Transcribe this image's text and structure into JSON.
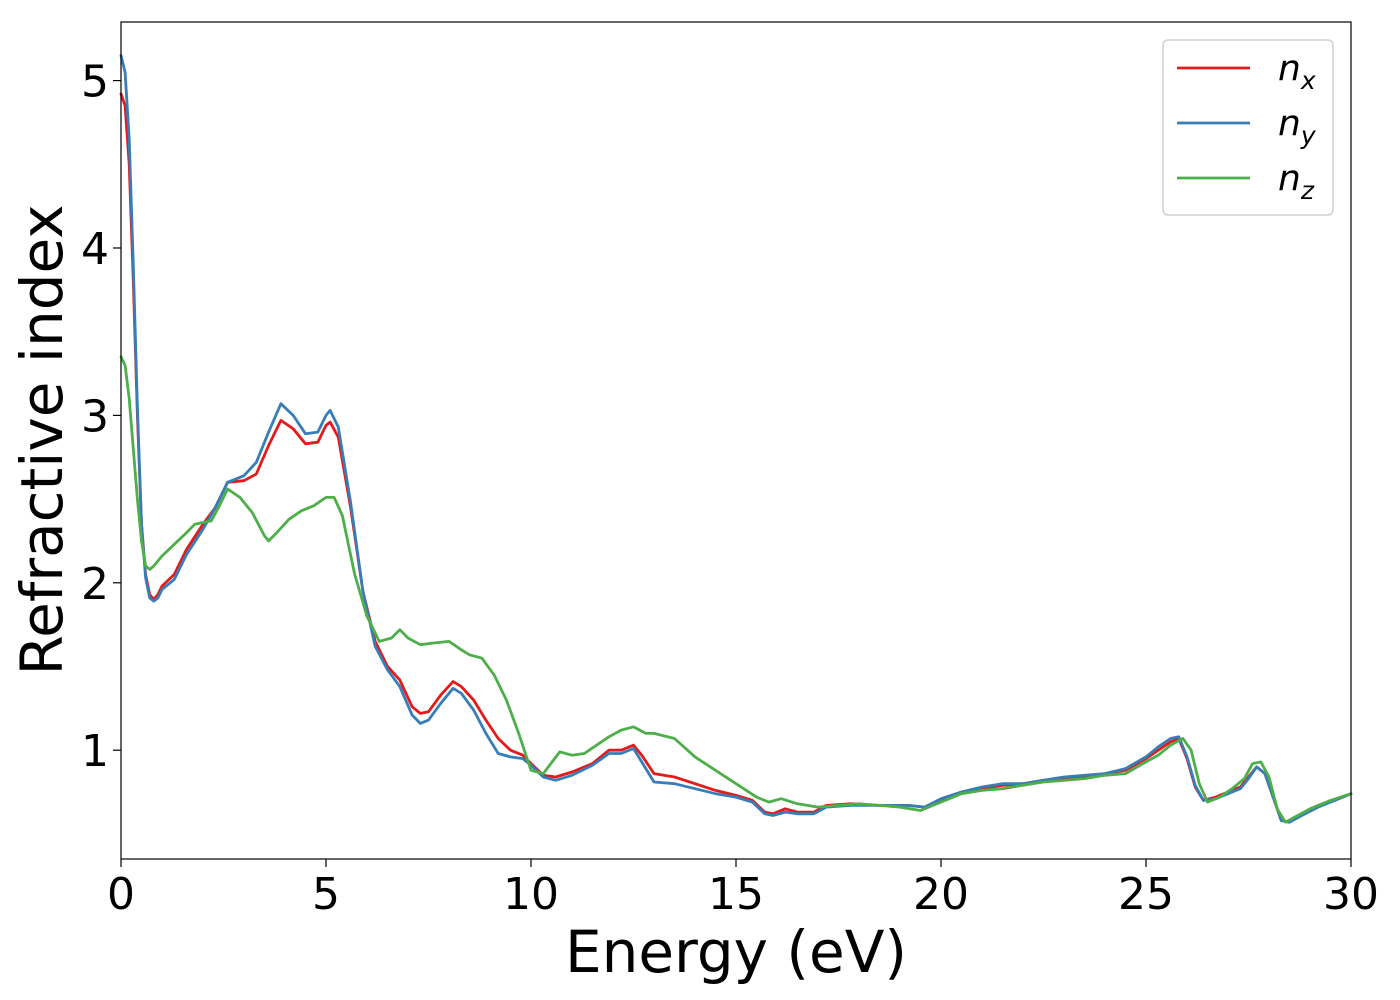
{
  "chart_data": {
    "type": "line",
    "title": "",
    "xlabel": "Energy (eV)",
    "ylabel": "Refractive index",
    "xlim": [
      0,
      30
    ],
    "ylim": [
      0.35,
      5.35
    ],
    "xticks": [
      0,
      5,
      10,
      15,
      20,
      25,
      30
    ],
    "yticks": [
      1,
      2,
      3,
      4,
      5
    ],
    "grid": false,
    "legend_position": "top-right",
    "series": [
      {
        "name": "n_x",
        "label_base": "n",
        "label_sub": "x",
        "color": "#e41a1c",
        "points": [
          [
            0,
            4.92
          ],
          [
            0.1,
            4.85
          ],
          [
            0.2,
            4.5
          ],
          [
            0.3,
            3.8
          ],
          [
            0.4,
            3.0
          ],
          [
            0.5,
            2.35
          ],
          [
            0.6,
            2.05
          ],
          [
            0.7,
            1.93
          ],
          [
            0.8,
            1.9
          ],
          [
            0.9,
            1.93
          ],
          [
            1.0,
            1.98
          ],
          [
            1.3,
            2.05
          ],
          [
            1.6,
            2.2
          ],
          [
            2.0,
            2.35
          ],
          [
            2.3,
            2.45
          ],
          [
            2.6,
            2.6
          ],
          [
            3.0,
            2.61
          ],
          [
            3.3,
            2.65
          ],
          [
            3.6,
            2.82
          ],
          [
            3.9,
            2.97
          ],
          [
            4.2,
            2.92
          ],
          [
            4.5,
            2.83
          ],
          [
            4.8,
            2.84
          ],
          [
            5.0,
            2.94
          ],
          [
            5.1,
            2.96
          ],
          [
            5.3,
            2.87
          ],
          [
            5.6,
            2.45
          ],
          [
            5.9,
            1.95
          ],
          [
            6.2,
            1.65
          ],
          [
            6.5,
            1.5
          ],
          [
            6.8,
            1.42
          ],
          [
            7.1,
            1.26
          ],
          [
            7.3,
            1.22
          ],
          [
            7.5,
            1.23
          ],
          [
            7.8,
            1.33
          ],
          [
            8.1,
            1.41
          ],
          [
            8.3,
            1.38
          ],
          [
            8.6,
            1.3
          ],
          [
            8.9,
            1.18
          ],
          [
            9.2,
            1.07
          ],
          [
            9.5,
            1.0
          ],
          [
            9.8,
            0.97
          ],
          [
            10.0,
            0.92
          ],
          [
            10.3,
            0.85
          ],
          [
            10.6,
            0.84
          ],
          [
            11.0,
            0.87
          ],
          [
            11.5,
            0.92
          ],
          [
            11.9,
            1.0
          ],
          [
            12.2,
            1.0
          ],
          [
            12.5,
            1.03
          ],
          [
            12.7,
            0.97
          ],
          [
            13.0,
            0.86
          ],
          [
            13.5,
            0.84
          ],
          [
            14.0,
            0.8
          ],
          [
            14.5,
            0.76
          ],
          [
            15.0,
            0.73
          ],
          [
            15.4,
            0.7
          ],
          [
            15.7,
            0.63
          ],
          [
            15.9,
            0.62
          ],
          [
            16.2,
            0.65
          ],
          [
            16.5,
            0.63
          ],
          [
            16.9,
            0.63
          ],
          [
            17.2,
            0.67
          ],
          [
            17.8,
            0.68
          ],
          [
            18.5,
            0.67
          ],
          [
            19.2,
            0.67
          ],
          [
            19.6,
            0.66
          ],
          [
            20.0,
            0.7
          ],
          [
            20.5,
            0.75
          ],
          [
            21.0,
            0.77
          ],
          [
            21.5,
            0.79
          ],
          [
            22.0,
            0.8
          ],
          [
            22.5,
            0.82
          ],
          [
            23.0,
            0.83
          ],
          [
            23.5,
            0.84
          ],
          [
            24.0,
            0.86
          ],
          [
            24.5,
            0.88
          ],
          [
            25.0,
            0.95
          ],
          [
            25.3,
            1.0
          ],
          [
            25.6,
            1.05
          ],
          [
            25.8,
            1.07
          ],
          [
            26.0,
            0.95
          ],
          [
            26.2,
            0.78
          ],
          [
            26.4,
            0.7
          ],
          [
            26.7,
            0.72
          ],
          [
            27.0,
            0.75
          ],
          [
            27.3,
            0.78
          ],
          [
            27.5,
            0.84
          ],
          [
            27.7,
            0.9
          ],
          [
            27.9,
            0.86
          ],
          [
            28.1,
            0.72
          ],
          [
            28.3,
            0.58
          ],
          [
            28.5,
            0.57
          ],
          [
            28.8,
            0.62
          ],
          [
            29.2,
            0.67
          ],
          [
            29.6,
            0.7
          ],
          [
            30.0,
            0.74
          ]
        ]
      },
      {
        "name": "n_y",
        "label_base": "n",
        "label_sub": "y",
        "color": "#377eb8",
        "points": [
          [
            0,
            5.15
          ],
          [
            0.1,
            5.05
          ],
          [
            0.2,
            4.65
          ],
          [
            0.3,
            3.9
          ],
          [
            0.4,
            3.05
          ],
          [
            0.5,
            2.35
          ],
          [
            0.6,
            2.03
          ],
          [
            0.7,
            1.91
          ],
          [
            0.8,
            1.89
          ],
          [
            0.9,
            1.91
          ],
          [
            1.0,
            1.96
          ],
          [
            1.3,
            2.02
          ],
          [
            1.6,
            2.17
          ],
          [
            2.0,
            2.32
          ],
          [
            2.3,
            2.45
          ],
          [
            2.6,
            2.6
          ],
          [
            3.0,
            2.64
          ],
          [
            3.3,
            2.72
          ],
          [
            3.6,
            2.9
          ],
          [
            3.9,
            3.07
          ],
          [
            4.2,
            3.0
          ],
          [
            4.5,
            2.89
          ],
          [
            4.8,
            2.9
          ],
          [
            5.0,
            3.0
          ],
          [
            5.1,
            3.03
          ],
          [
            5.3,
            2.93
          ],
          [
            5.6,
            2.48
          ],
          [
            5.9,
            1.95
          ],
          [
            6.2,
            1.62
          ],
          [
            6.5,
            1.48
          ],
          [
            6.8,
            1.38
          ],
          [
            7.1,
            1.21
          ],
          [
            7.3,
            1.16
          ],
          [
            7.5,
            1.18
          ],
          [
            7.8,
            1.28
          ],
          [
            8.1,
            1.37
          ],
          [
            8.3,
            1.34
          ],
          [
            8.6,
            1.24
          ],
          [
            8.9,
            1.1
          ],
          [
            9.2,
            0.98
          ],
          [
            9.5,
            0.96
          ],
          [
            9.8,
            0.95
          ],
          [
            10.0,
            0.91
          ],
          [
            10.3,
            0.84
          ],
          [
            10.6,
            0.82
          ],
          [
            11.0,
            0.85
          ],
          [
            11.5,
            0.91
          ],
          [
            11.9,
            0.98
          ],
          [
            12.2,
            0.98
          ],
          [
            12.5,
            1.01
          ],
          [
            12.7,
            0.93
          ],
          [
            13.0,
            0.81
          ],
          [
            13.5,
            0.8
          ],
          [
            14.0,
            0.77
          ],
          [
            14.5,
            0.74
          ],
          [
            15.0,
            0.72
          ],
          [
            15.4,
            0.69
          ],
          [
            15.7,
            0.62
          ],
          [
            15.9,
            0.61
          ],
          [
            16.2,
            0.63
          ],
          [
            16.5,
            0.62
          ],
          [
            16.9,
            0.62
          ],
          [
            17.2,
            0.66
          ],
          [
            17.8,
            0.67
          ],
          [
            18.5,
            0.67
          ],
          [
            19.2,
            0.67
          ],
          [
            19.6,
            0.66
          ],
          [
            20.0,
            0.71
          ],
          [
            20.5,
            0.75
          ],
          [
            21.0,
            0.78
          ],
          [
            21.5,
            0.8
          ],
          [
            22.0,
            0.8
          ],
          [
            22.5,
            0.82
          ],
          [
            23.0,
            0.84
          ],
          [
            23.5,
            0.85
          ],
          [
            24.0,
            0.86
          ],
          [
            24.5,
            0.89
          ],
          [
            25.0,
            0.96
          ],
          [
            25.3,
            1.02
          ],
          [
            25.6,
            1.07
          ],
          [
            25.8,
            1.08
          ],
          [
            26.0,
            0.96
          ],
          [
            26.2,
            0.79
          ],
          [
            26.4,
            0.7
          ],
          [
            26.7,
            0.71
          ],
          [
            27.0,
            0.74
          ],
          [
            27.3,
            0.77
          ],
          [
            27.5,
            0.83
          ],
          [
            27.7,
            0.9
          ],
          [
            27.9,
            0.86
          ],
          [
            28.1,
            0.72
          ],
          [
            28.3,
            0.58
          ],
          [
            28.5,
            0.57
          ],
          [
            28.8,
            0.61
          ],
          [
            29.2,
            0.66
          ],
          [
            29.6,
            0.7
          ],
          [
            30.0,
            0.74
          ]
        ]
      },
      {
        "name": "n_z",
        "label_base": "n",
        "label_sub": "z",
        "color": "#4daf4a",
        "points": [
          [
            0,
            3.35
          ],
          [
            0.1,
            3.3
          ],
          [
            0.2,
            3.1
          ],
          [
            0.3,
            2.8
          ],
          [
            0.4,
            2.5
          ],
          [
            0.5,
            2.25
          ],
          [
            0.6,
            2.1
          ],
          [
            0.7,
            2.08
          ],
          [
            0.8,
            2.1
          ],
          [
            1.0,
            2.16
          ],
          [
            1.3,
            2.23
          ],
          [
            1.6,
            2.3
          ],
          [
            1.8,
            2.35
          ],
          [
            2.0,
            2.36
          ],
          [
            2.2,
            2.37
          ],
          [
            2.4,
            2.46
          ],
          [
            2.6,
            2.56
          ],
          [
            2.9,
            2.51
          ],
          [
            3.2,
            2.42
          ],
          [
            3.5,
            2.28
          ],
          [
            3.6,
            2.25
          ],
          [
            3.8,
            2.3
          ],
          [
            4.1,
            2.38
          ],
          [
            4.4,
            2.43
          ],
          [
            4.7,
            2.46
          ],
          [
            5.0,
            2.51
          ],
          [
            5.2,
            2.51
          ],
          [
            5.4,
            2.4
          ],
          [
            5.7,
            2.05
          ],
          [
            6.0,
            1.8
          ],
          [
            6.3,
            1.65
          ],
          [
            6.6,
            1.67
          ],
          [
            6.8,
            1.72
          ],
          [
            7.0,
            1.67
          ],
          [
            7.3,
            1.63
          ],
          [
            7.6,
            1.64
          ],
          [
            8.0,
            1.65
          ],
          [
            8.3,
            1.6
          ],
          [
            8.5,
            1.57
          ],
          [
            8.8,
            1.55
          ],
          [
            9.1,
            1.45
          ],
          [
            9.4,
            1.3
          ],
          [
            9.7,
            1.1
          ],
          [
            10.0,
            0.88
          ],
          [
            10.3,
            0.86
          ],
          [
            10.7,
            0.99
          ],
          [
            11.0,
            0.97
          ],
          [
            11.3,
            0.98
          ],
          [
            11.6,
            1.03
          ],
          [
            11.9,
            1.08
          ],
          [
            12.2,
            1.12
          ],
          [
            12.5,
            1.14
          ],
          [
            12.8,
            1.1
          ],
          [
            13.0,
            1.1
          ],
          [
            13.5,
            1.07
          ],
          [
            14.0,
            0.96
          ],
          [
            14.5,
            0.88
          ],
          [
            15.0,
            0.8
          ],
          [
            15.5,
            0.72
          ],
          [
            15.8,
            0.69
          ],
          [
            16.1,
            0.71
          ],
          [
            16.5,
            0.68
          ],
          [
            17.0,
            0.66
          ],
          [
            17.5,
            0.67
          ],
          [
            18.0,
            0.68
          ],
          [
            18.5,
            0.67
          ],
          [
            19.0,
            0.66
          ],
          [
            19.5,
            0.64
          ],
          [
            20.0,
            0.69
          ],
          [
            20.5,
            0.74
          ],
          [
            21.0,
            0.76
          ],
          [
            21.5,
            0.77
          ],
          [
            22.0,
            0.79
          ],
          [
            22.5,
            0.81
          ],
          [
            23.0,
            0.82
          ],
          [
            23.5,
            0.83
          ],
          [
            24.0,
            0.85
          ],
          [
            24.5,
            0.86
          ],
          [
            25.0,
            0.93
          ],
          [
            25.3,
            0.97
          ],
          [
            25.6,
            1.03
          ],
          [
            25.9,
            1.07
          ],
          [
            26.1,
            1.0
          ],
          [
            26.3,
            0.8
          ],
          [
            26.5,
            0.69
          ],
          [
            26.8,
            0.72
          ],
          [
            27.1,
            0.77
          ],
          [
            27.4,
            0.83
          ],
          [
            27.6,
            0.92
          ],
          [
            27.8,
            0.93
          ],
          [
            28.0,
            0.84
          ],
          [
            28.2,
            0.65
          ],
          [
            28.4,
            0.57
          ],
          [
            28.7,
            0.61
          ],
          [
            29.0,
            0.65
          ],
          [
            29.5,
            0.7
          ],
          [
            30.0,
            0.74
          ]
        ]
      }
    ]
  }
}
